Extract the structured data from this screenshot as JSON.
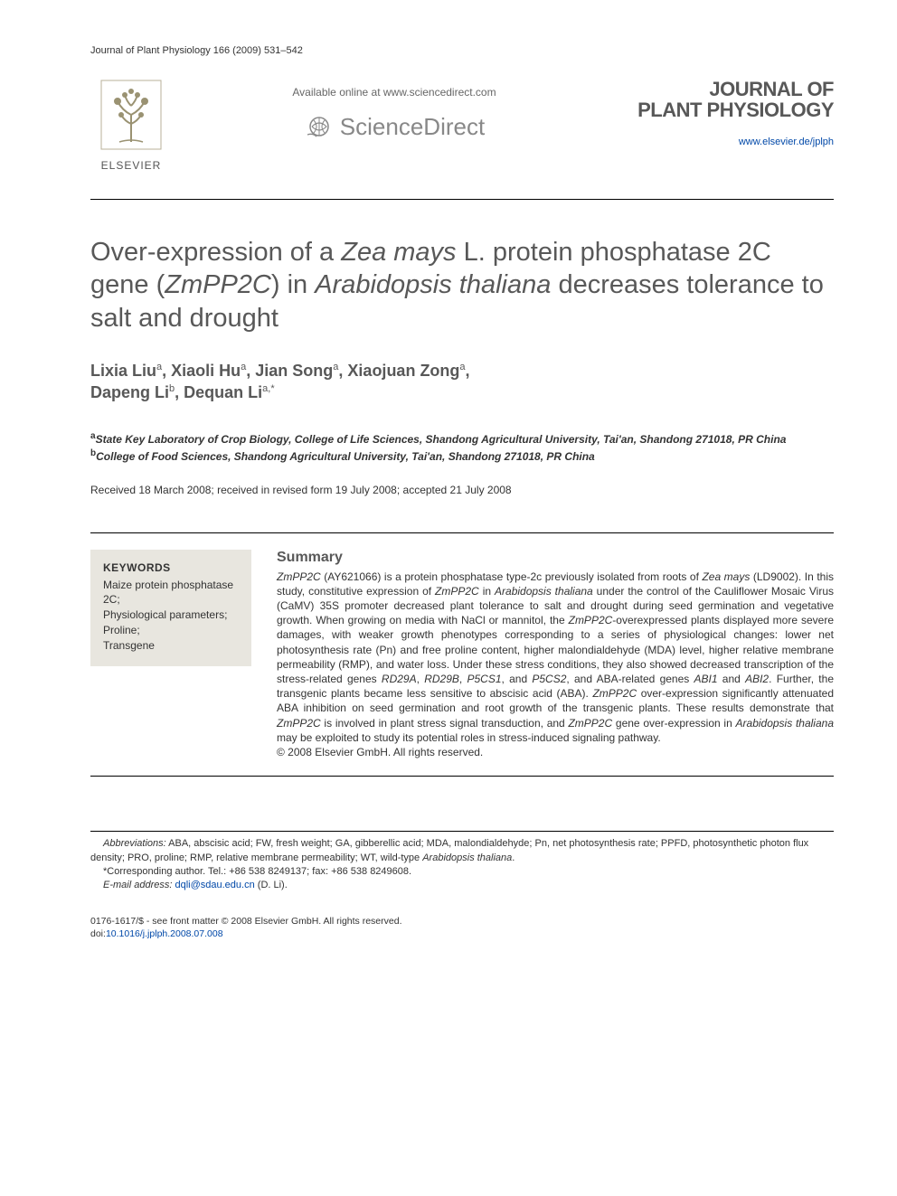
{
  "running_head": "Journal of Plant Physiology 166 (2009) 531–542",
  "header": {
    "elsevier_label": "ELSEVIER",
    "sd_available": "Available online at www.sciencedirect.com",
    "sd_name": "ScienceDirect",
    "journal_name_l1": "JOURNAL OF",
    "journal_name_l2": "PLANT PHYSIOLOGY",
    "journal_url": "www.elsevier.de/jplph"
  },
  "title_html": "Over-expression of a <em>Zea mays</em> L. protein phosphatase 2C gene (<em>ZmPP2C</em>) in <em>Arabidopsis thaliana</em> decreases tolerance to salt and drought",
  "authors_html": "Lixia Liu<sup>a</sup>, Xiaoli Hu<sup>a</sup>, Jian Song<sup>a</sup>, Xiaojuan Zong<sup>a</sup>,<br>Dapeng Li<sup>b</sup>, Dequan Li<sup>a,*</sup>",
  "affiliations": {
    "a": "State Key Laboratory of Crop Biology, College of Life Sciences, Shandong Agricultural University, Tai'an, Shandong 271018, PR China",
    "b": "College of Food Sciences, Shandong Agricultural University, Tai'an, Shandong 271018, PR China"
  },
  "dates": "Received 18 March 2008; received in revised form 19 July 2008; accepted 21 July 2008",
  "keywords": {
    "heading": "KEYWORDS",
    "items": [
      "Maize protein phosphatase 2C;",
      "Physiological parameters;",
      "Proline;",
      "Transgene"
    ]
  },
  "summary": {
    "heading": "Summary",
    "text_html": "<em>ZmPP2C</em> (AY621066) is a protein phosphatase type-2c previously isolated from roots of <em>Zea mays</em> (LD9002). In this study, constitutive expression of <em>ZmPP2C</em> in <em>Arabidopsis thaliana</em> under the control of the Cauliflower Mosaic Virus (CaMV) 35S promoter decreased plant tolerance to salt and drought during seed germination and vegetative growth. When growing on media with NaCl or mannitol, the <em>ZmPP2C</em>-overexpressed plants displayed more severe damages, with weaker growth phenotypes corresponding to a series of physiological changes: lower net photosynthesis rate (Pn) and free proline content, higher malondialdehyde (MDA) level, higher relative membrane permeability (RMP), and water loss. Under these stress conditions, they also showed decreased transcription of the stress-related genes <em>RD29A</em>, <em>RD29B</em>, <em>P5CS1</em>, and <em>P5CS2</em>, and ABA-related genes <em>ABI1</em> and <em>ABI2</em>. Further, the transgenic plants became less sensitive to abscisic acid (ABA). <em>ZmPP2C</em> over-expression significantly attenuated ABA inhibition on seed germination and root growth of the transgenic plants. These results demonstrate that <em>ZmPP2C</em> is involved in plant stress signal transduction, and <em>ZmPP2C</em> gene over-expression in <em>Arabidopsis thaliana</em> may be exploited to study its potential roles in stress-induced signaling pathway.",
    "copyright": "© 2008 Elsevier GmbH. All rights reserved."
  },
  "footnotes": {
    "abbrev_html": "<em>Abbreviations:</em> ABA, abscisic acid; FW, fresh weight; GA, gibberellic acid; MDA, malondialdehyde; Pn, net photosynthesis rate; PPFD, photosynthetic photon flux density; PRO, proline; RMP, relative membrane permeability; WT, wild-type <em>Arabidopsis thaliana</em>.",
    "corr": "*Corresponding author. Tel.: +86 538 8249137; fax: +86 538 8249608.",
    "email_label": "E-mail address:",
    "email": "dqli@sdau.edu.cn",
    "email_who": "(D. Li)."
  },
  "footer": {
    "line1": "0176-1617/$ - see front matter © 2008 Elsevier GmbH. All rights reserved.",
    "doi_label": "doi:",
    "doi": "10.1016/j.jplph.2008.07.008"
  },
  "colors": {
    "text": "#333333",
    "muted": "#585858",
    "link": "#0048a8",
    "kw_bg": "#e8e6df"
  }
}
